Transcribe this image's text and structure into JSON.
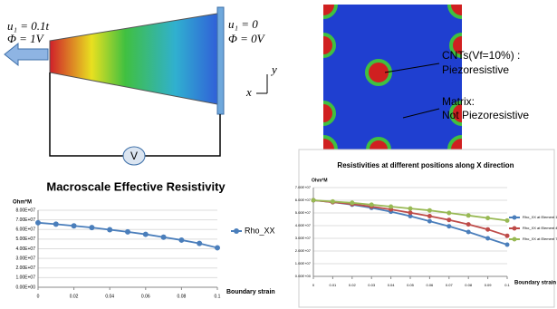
{
  "diagram": {
    "load_left": "u₁ = 0.1t",
    "potential_left": "Φ = 1V",
    "load_right": "u₁ = 0",
    "potential_right": "Φ = 0V",
    "axis_y": "y",
    "axis_x": "x",
    "meter": "V",
    "cnt_label_1": "CNTs(Vf=10%) :",
    "cnt_label_2": "Piezoresistive",
    "matrix_label_1": "Matrix:",
    "matrix_label_2": "Not Piezoresistive"
  },
  "chart_data": [
    {
      "type": "line",
      "title": "Macroscale Effective Resistivity",
      "y_label": "Ohm*M",
      "x_label": "Boundary strain",
      "x": [
        0,
        0.01,
        0.02,
        0.03,
        0.04,
        0.05,
        0.06,
        0.07,
        0.08,
        0.09,
        0.1
      ],
      "series": [
        {
          "name": "Rho_XX",
          "color": "#4a7ebb",
          "values": [
            67000000.0,
            65500000.0,
            63800000.0,
            62000000.0,
            59800000.0,
            57500000.0,
            55000000.0,
            52000000.0,
            49000000.0,
            45500000.0,
            41000000.0
          ]
        }
      ],
      "xlim": [
        0,
        0.1
      ],
      "xticks": [
        0,
        0.02,
        0.04,
        0.06,
        0.08,
        0.1
      ],
      "ylim": [
        0,
        80000000.0
      ],
      "yticks": [
        {
          "value": 0,
          "label": "0.00E+00"
        },
        {
          "value": 10000000.0,
          "label": "1.00E+07"
        },
        {
          "value": 20000000.0,
          "label": "2.00E+07"
        },
        {
          "value": 30000000.0,
          "label": "3.00E+07"
        },
        {
          "value": 40000000.0,
          "label": "4.00E+07"
        },
        {
          "value": 50000000.0,
          "label": "5.00E+07"
        },
        {
          "value": 60000000.0,
          "label": "6.00E+07"
        },
        {
          "value": 70000000.0,
          "label": "7.00E+07"
        },
        {
          "value": 80000000.0,
          "label": "8.00E+07"
        }
      ]
    },
    {
      "type": "line",
      "title": "Resistivities at different positions along X direction",
      "y_label": "Ohm*M",
      "x_label": "Boundary strain",
      "x": [
        0,
        0.01,
        0.02,
        0.03,
        0.04,
        0.05,
        0.06,
        0.07,
        0.08,
        0.09,
        0.1
      ],
      "series": [
        {
          "name": "Rho_XX at Element 1",
          "color": "#4a7ebb",
          "values": [
            60000000.0,
            58500000.0,
            56500000.0,
            54000000.0,
            51000000.0,
            47500000.0,
            43500000.0,
            39500000.0,
            35000000.0,
            30000000.0,
            25000000.0
          ]
        },
        {
          "name": "Rho_XX at Element 43",
          "color": "#be4b48",
          "values": [
            60000000.0,
            58500000.0,
            57000000.0,
            55000000.0,
            52800000.0,
            50200000.0,
            47500000.0,
            44500000.0,
            41000000.0,
            37000000.0,
            32000000.0
          ]
        },
        {
          "name": "Rho_XX at Element 71",
          "color": "#98b954",
          "values": [
            60000000.0,
            59000000.0,
            58000000.0,
            56500000.0,
            55000000.0,
            53500000.0,
            52000000.0,
            50000000.0,
            48000000.0,
            46000000.0,
            44000000.0
          ]
        }
      ],
      "xlim": [
        0,
        0.1
      ],
      "xticks": [
        0,
        0.01,
        0.02,
        0.03,
        0.04,
        0.05,
        0.06,
        0.07,
        0.08,
        0.09,
        0.1
      ],
      "ylim": [
        0,
        70000000.0
      ],
      "yticks": [
        {
          "value": 0,
          "label": "0.00E+00"
        },
        {
          "value": 10000000.0,
          "label": "1.00E+07"
        },
        {
          "value": 20000000.0,
          "label": "2.00E+07"
        },
        {
          "value": 30000000.0,
          "label": "3.00E+07"
        },
        {
          "value": 40000000.0,
          "label": "4.00E+07"
        },
        {
          "value": 50000000.0,
          "label": "5.00E+07"
        },
        {
          "value": 60000000.0,
          "label": "6.00E+07"
        },
        {
          "value": 70000000.0,
          "label": "7.00E+07"
        }
      ]
    }
  ]
}
